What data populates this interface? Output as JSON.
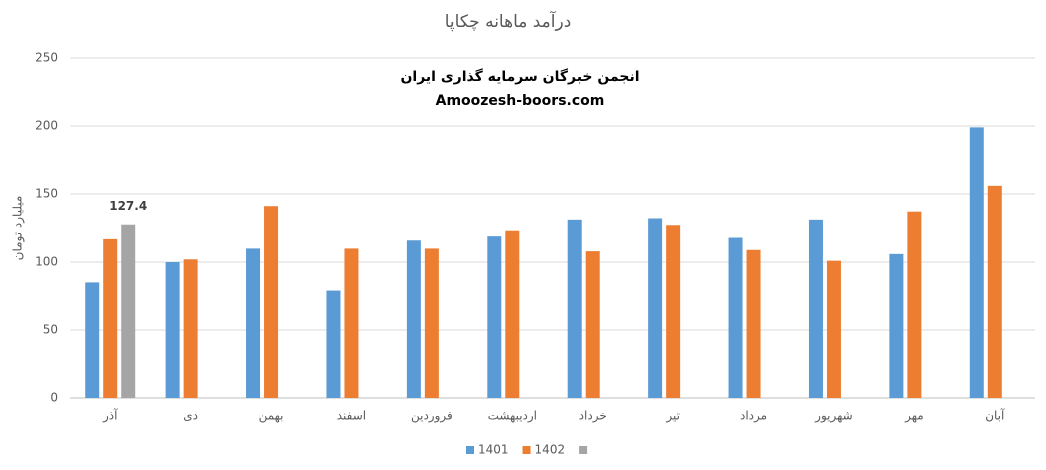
{
  "chart_data": {
    "type": "bar",
    "title": "درآمد ماهانه چکاپا",
    "annotations": [
      "انجمن خبرگان سرمایه گذاری ایران",
      "Amoozesh-boors.com"
    ],
    "y_label": "میلیارد تومان",
    "categories": [
      "آذر",
      "دی",
      "بهمن",
      "اسفند",
      "فروردین",
      "اردیبهشت",
      "خرداد",
      "تیر",
      "مرداد",
      "شهریور",
      "مهر",
      "آبان"
    ],
    "series": [
      {
        "name": "1401",
        "color": "#5b9bd5",
        "values": [
          85,
          100,
          110,
          79,
          116,
          119,
          131,
          132,
          118,
          131,
          106,
          199
        ]
      },
      {
        "name": "1402",
        "color": "#ed7d31",
        "values": [
          117,
          102,
          141,
          110,
          110,
          123,
          108,
          127,
          109,
          101,
          137,
          156
        ]
      },
      {
        "color": "#a5a5a5",
        "values": [
          127.4,
          null,
          null,
          null,
          null,
          null,
          null,
          null,
          null,
          null,
          null,
          null
        ],
        "show_labels": true
      }
    ],
    "ylim": [
      0,
      250
    ],
    "yticks": [
      0,
      50,
      100,
      150,
      200,
      250
    ],
    "grid": true,
    "legend": "bottom"
  }
}
